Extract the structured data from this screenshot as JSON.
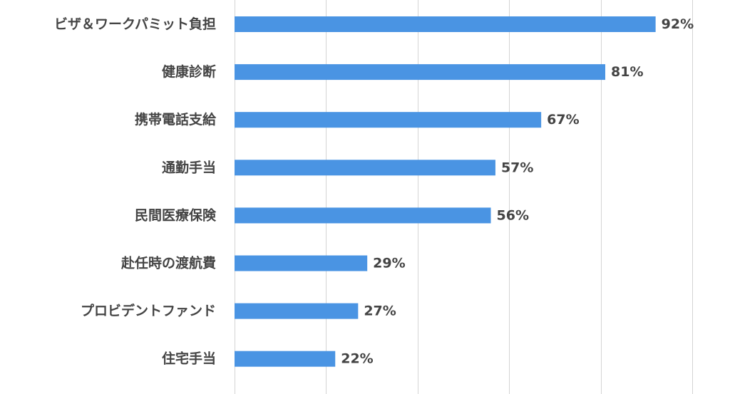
{
  "chart_data": {
    "type": "bar",
    "orientation": "horizontal",
    "categories": [
      "ビザ＆ワークパミット負担",
      "健康診断",
      "携帯電話支給",
      "通勤手当",
      "民間医療保険",
      "赴任時の渡航費",
      "プロビデントファンド",
      "住宅手当"
    ],
    "values": [
      92,
      81,
      67,
      57,
      56,
      29,
      27,
      22
    ],
    "value_labels": [
      "92%",
      "81%",
      "67%",
      "57%",
      "56%",
      "29%",
      "27%",
      "22%"
    ],
    "title": "",
    "xlabel": "",
    "ylabel": "",
    "xlim": [
      0,
      100
    ],
    "gridlines_at": [
      0,
      20,
      40,
      60,
      80,
      100
    ],
    "grid": true,
    "legend": "none",
    "bar_color": "#4a94e3",
    "label_color": "#444444",
    "grid_color": "#d4d4d4"
  }
}
